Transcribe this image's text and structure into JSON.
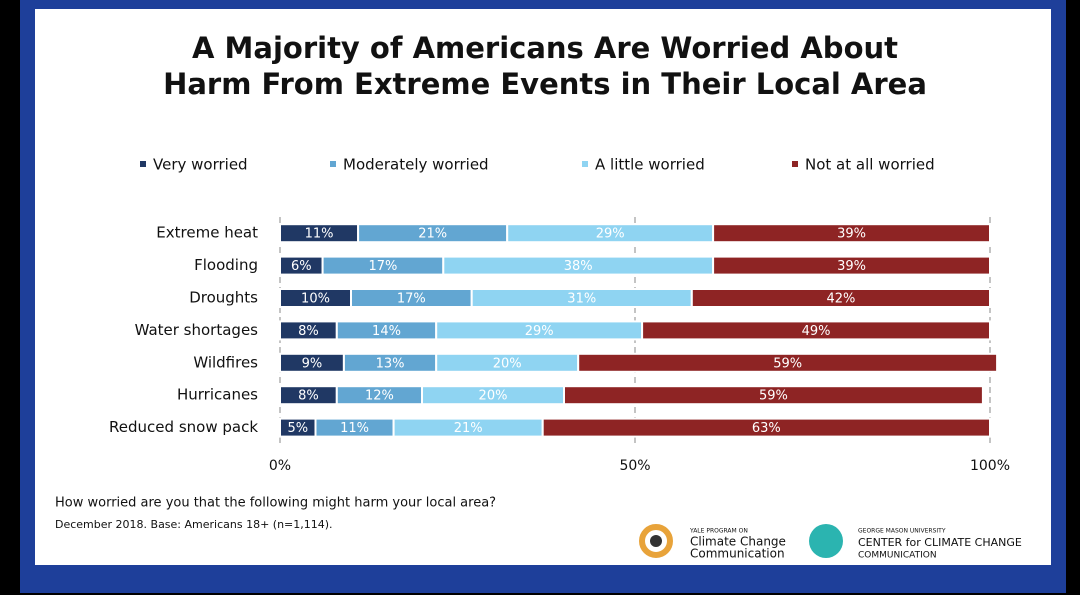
{
  "chart_data": {
    "type": "stacked-bar-horizontal",
    "title": [
      "A Majority of Americans Are Worried About",
      "Harm From Extreme Events in Their Local Area"
    ],
    "categories": [
      "Extreme heat",
      "Flooding",
      "Droughts",
      "Water shortages",
      "Wildfires",
      "Hurricanes",
      "Reduced snow pack"
    ],
    "series": [
      {
        "name": "Very worried",
        "color": "#203864",
        "values": [
          11,
          6,
          10,
          8,
          9,
          8,
          5
        ],
        "value_labels": [
          "11%",
          "6%",
          "10%",
          "8%",
          "9%",
          "8%",
          "5%"
        ]
      },
      {
        "name": "Moderately worried",
        "color": "#62a6d2",
        "values": [
          21,
          17,
          17,
          14,
          13,
          12,
          11
        ],
        "value_labels": [
          "21%",
          "17%",
          "17%",
          "14%",
          "13%",
          "12%",
          "11%"
        ]
      },
      {
        "name": "A little worried",
        "color": "#8fd4f2",
        "values": [
          29,
          38,
          31,
          29,
          20,
          20,
          21
        ],
        "value_labels": [
          "29%",
          "38%",
          "31%",
          "29%",
          "20%",
          "20%",
          "21%"
        ]
      },
      {
        "name": "Not at all worried",
        "color": "#8e2424",
        "values": [
          39,
          39,
          42,
          49,
          59,
          59,
          63
        ],
        "value_labels": [
          "39%",
          "39%",
          "42%",
          "49%",
          "59%",
          "59%",
          "63%"
        ]
      }
    ],
    "xlim": [
      0,
      100
    ],
    "xticks": [
      {
        "value": 0,
        "label": "0%"
      },
      {
        "value": 50,
        "label": "50%"
      },
      {
        "value": 100,
        "label": "100%"
      }
    ],
    "grid": true,
    "legend": "top",
    "question": "How worried are you that the following might harm your local area?",
    "source": "December 2018. Base: Americans 18+ (n=1,114)."
  },
  "footer": {
    "logo1": [
      "YALE PROGRAM ON",
      "Climate Change",
      "Communication"
    ],
    "logo2": [
      "GEORGE MASON UNIVERSITY",
      "CENTER for CLIMATE CHANGE",
      "COMMUNICATION"
    ]
  }
}
